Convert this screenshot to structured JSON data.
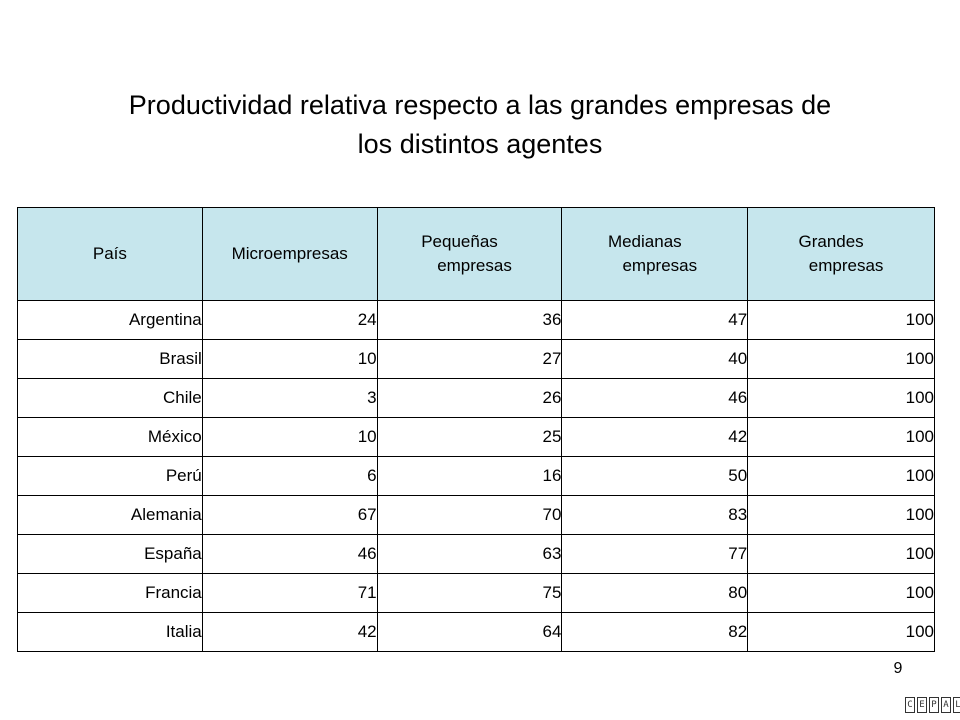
{
  "title": {
    "line1": "Productividad relativa respecto a las grandes empresas de",
    "line2": "los distintos agentes"
  },
  "table": {
    "header_color": "#c6e6ed",
    "headers": [
      {
        "line1": "País",
        "line2": ""
      },
      {
        "line1": "Microempresas",
        "line2": ""
      },
      {
        "line1": "Pequeñas",
        "line2": "empresas"
      },
      {
        "line1": "Medianas",
        "line2": "empresas"
      },
      {
        "line1": "Grandes",
        "line2": "empresas"
      }
    ],
    "rows": [
      {
        "country": "Argentina",
        "micro": "24",
        "pequenas": "36",
        "medianas": "47",
        "grandes": "100"
      },
      {
        "country": "Brasil",
        "micro": "10",
        "pequenas": "27",
        "medianas": "40",
        "grandes": "100"
      },
      {
        "country": "Chile",
        "micro": "3",
        "pequenas": "26",
        "medianas": "46",
        "grandes": "100"
      },
      {
        "country": "México",
        "micro": "10",
        "pequenas": "25",
        "medianas": "42",
        "grandes": "100"
      },
      {
        "country": "Perú",
        "micro": "6",
        "pequenas": "16",
        "medianas": "50",
        "grandes": "100"
      },
      {
        "country": "Alemania",
        "micro": "67",
        "pequenas": "70",
        "medianas": "83",
        "grandes": "100"
      },
      {
        "country": "España",
        "micro": "46",
        "pequenas": "63",
        "medianas": "77",
        "grandes": "100"
      },
      {
        "country": "Francia",
        "micro": "71",
        "pequenas": "75",
        "medianas": "80",
        "grandes": "100"
      },
      {
        "country": "Italia",
        "micro": "42",
        "pequenas": "64",
        "medianas": "82",
        "grandes": "100"
      }
    ]
  },
  "page_number": "9",
  "logo": {
    "letters": [
      "C",
      "E",
      "P",
      "A",
      "L"
    ]
  }
}
